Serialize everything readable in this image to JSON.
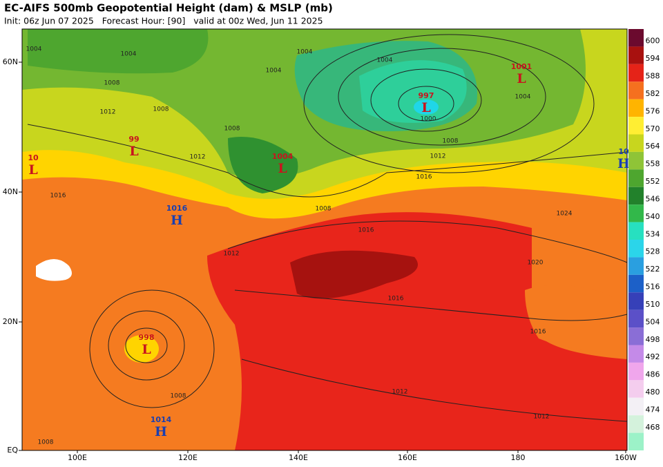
{
  "header": {
    "title": "EC-AIFS 500mb Geopotential Height (dam) & MSLP (mb)",
    "subtitle": "Init: 06z Jun 07 2025   Forecast Hour: [90]   valid at 00z Wed, Jun 11 2025"
  },
  "map": {
    "lat_labels": [
      "60N",
      "40N",
      "20N",
      "EQ"
    ],
    "lon_labels": [
      "100E",
      "120E",
      "140E",
      "160E",
      "180",
      "160W"
    ],
    "centers": [
      {
        "letter": "L",
        "value": "997"
      },
      {
        "letter": "L",
        "value": "1001"
      },
      {
        "letter": "L",
        "value": "99"
      },
      {
        "letter": "L",
        "value": "10"
      },
      {
        "letter": "H",
        "value": "1016"
      },
      {
        "letter": "L",
        "value": "1004"
      },
      {
        "letter": "L",
        "value": "998"
      },
      {
        "letter": "H",
        "value": "1014"
      },
      {
        "letter": "H",
        "value": "10"
      }
    ],
    "isobar_labels": [
      "1004",
      "1004",
      "1004",
      "1004",
      "1004",
      "1008",
      "1012",
      "1008",
      "1008",
      "1012",
      "1016",
      "1008",
      "1012",
      "1016",
      "1012",
      "1016",
      "1008",
      "1000",
      "1004",
      "1024",
      "1020",
      "1016",
      "1016",
      "1012",
      "1012",
      "1008",
      "1008"
    ]
  },
  "colorbar": {
    "levels": [
      600,
      594,
      588,
      582,
      576,
      570,
      564,
      558,
      552,
      546,
      540,
      534,
      528,
      522,
      516,
      510,
      504,
      498,
      492,
      486,
      480,
      474,
      468
    ]
  }
}
